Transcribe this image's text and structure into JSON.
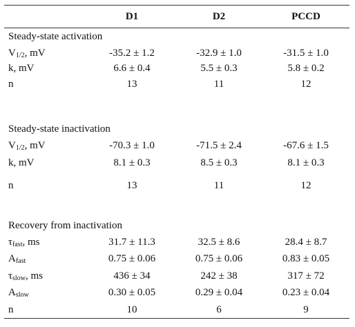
{
  "header": {
    "columns": [
      "D1",
      "D2",
      "PCCD"
    ]
  },
  "sections": [
    {
      "title": "Steady-state activation",
      "rows": [
        {
          "label": {
            "base": "V",
            "sub": "1/2",
            "suffix": ", mV"
          },
          "values": [
            "-35.2 ± 1.2",
            "-32.9 ± 1.0",
            "-31.5 ± 1.0"
          ]
        },
        {
          "label": "k, mV",
          "values": [
            "6.6 ± 0.4",
            "5.5 ± 0.3",
            "5.8 ± 0.2"
          ]
        },
        {
          "label": "n",
          "values": [
            "13",
            "11",
            "12"
          ]
        }
      ]
    },
    {
      "title": "Steady-state inactivation",
      "rows": [
        {
          "label": {
            "base": "V",
            "sub": "1/2",
            "suffix": ", mV"
          },
          "values": [
            "-70.3 ± 1.0",
            "-71.5 ± 2.4",
            "-67.6 ± 1.5"
          ]
        },
        {
          "label": "k, mV",
          "values": [
            "8.1 ± 0.3",
            "8.5 ± 0.3",
            "8.1 ± 0.3"
          ]
        },
        {
          "label": "n",
          "values": [
            "13",
            "11",
            "12"
          ]
        }
      ]
    },
    {
      "title": "Recovery from inactivation",
      "rows": [
        {
          "label": {
            "base": "τ",
            "sub": "fast",
            "suffix": ", ms"
          },
          "values": [
            "31.7 ± 11.3",
            "32.5 ± 8.6",
            "28.4 ± 8.7"
          ]
        },
        {
          "label": {
            "base": "A",
            "sub": "fast"
          },
          "values": [
            "0.75 ± 0.06",
            "0.75 ± 0.06",
            "0.83 ± 0.05"
          ]
        },
        {
          "label": {
            "base": "τ",
            "sub": "slow",
            "suffix": ", ms"
          },
          "values": [
            "436 ± 34",
            "242 ± 38",
            "317 ± 72"
          ]
        },
        {
          "label": {
            "base": "A",
            "sub": "slow"
          },
          "values": [
            "0.30 ± 0.05",
            "0.29 ± 0.04",
            "0.23 ± 0.04"
          ]
        },
        {
          "label": "n",
          "values": [
            "10",
            "6",
            "9"
          ]
        }
      ]
    }
  ]
}
